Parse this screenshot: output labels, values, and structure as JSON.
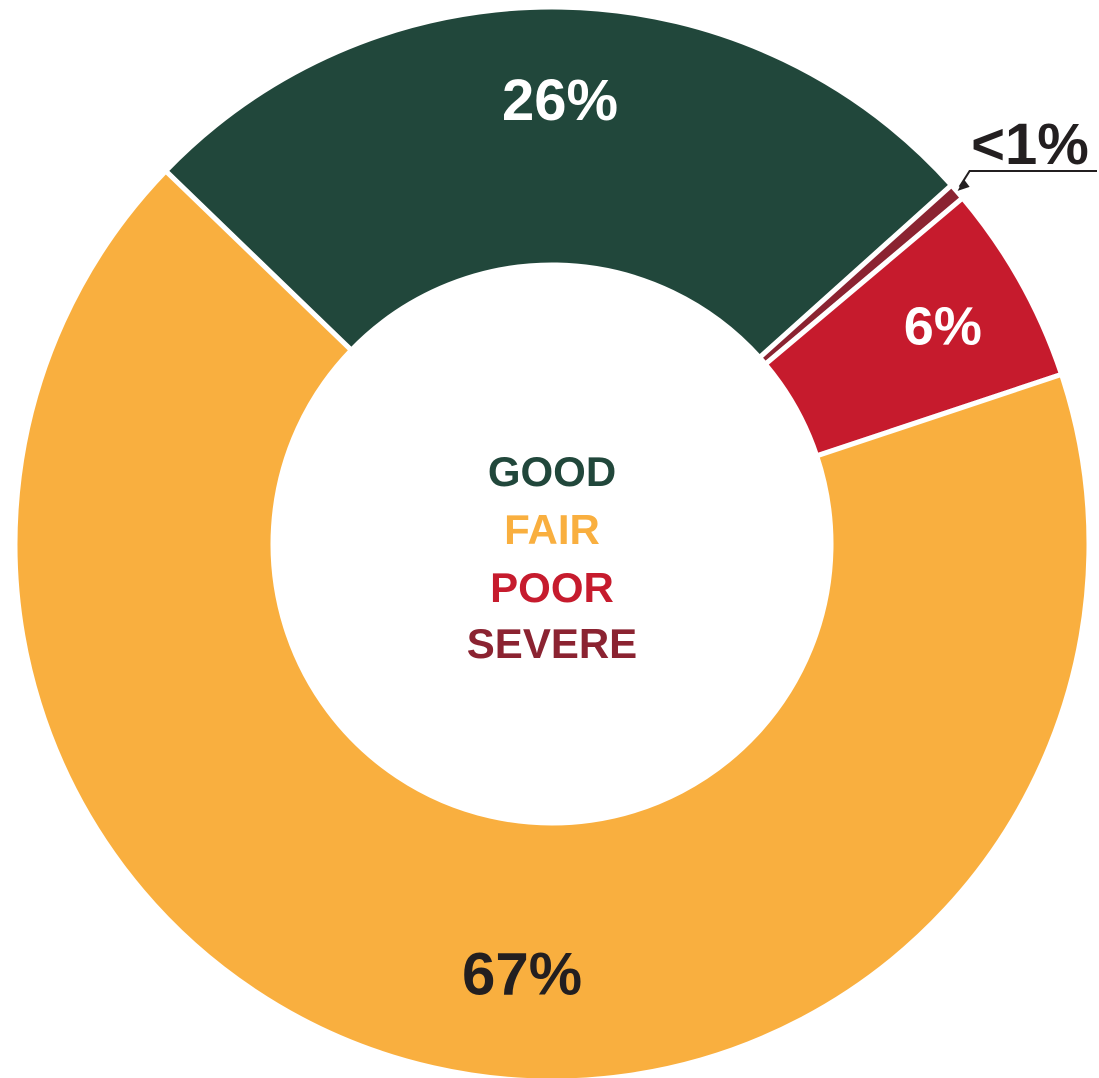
{
  "chart_data": {
    "type": "pie",
    "style": "donut",
    "categories": [
      "GOOD",
      "SEVERE",
      "POOR",
      "FAIR"
    ],
    "values": [
      26,
      0.5,
      6,
      67
    ],
    "value_labels": [
      "26%",
      "<1%",
      "6%",
      "67%"
    ],
    "colors": [
      "#21473b",
      "#8b2331",
      "#c61b2d",
      "#f9af3f"
    ],
    "legend_placement": "center",
    "legend": [
      {
        "label": "GOOD",
        "color": "#21473b"
      },
      {
        "label": "FAIR",
        "color": "#f9af3f"
      },
      {
        "label": "POOR",
        "color": "#c61b2d"
      },
      {
        "label": "SEVERE",
        "color": "#8b2331"
      }
    ]
  }
}
